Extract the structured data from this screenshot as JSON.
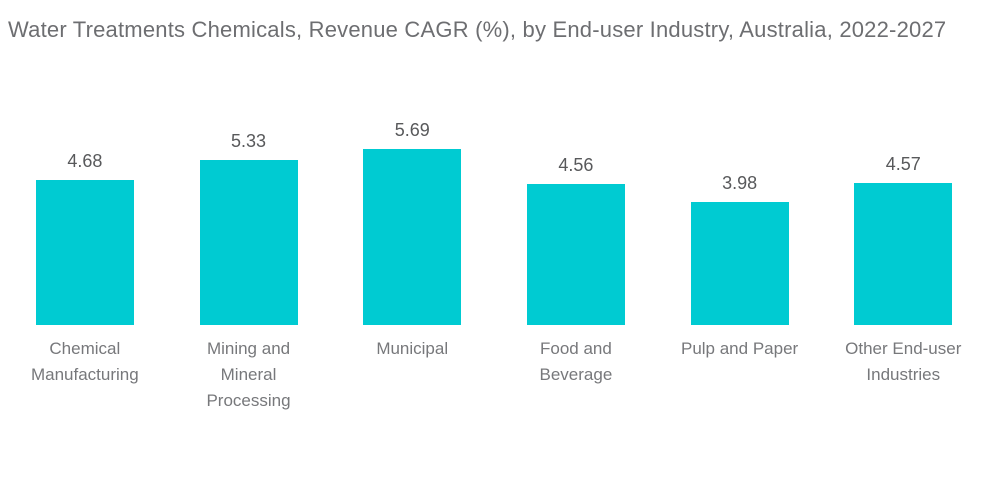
{
  "title": "Water Treatments Chemicals, Revenue CAGR (%), by End-user Industry, Australia, 2022-2027",
  "colors": {
    "background": "#FFFFFF",
    "bar": "#00CBD2",
    "title_text": "#6D6E71",
    "value_text": "#58595B",
    "category_text": "#77787B"
  },
  "chart_data": {
    "type": "bar",
    "title": "Water Treatments Chemicals, Revenue CAGR (%), by End-user Industry, Australia, 2022-2027",
    "categories": [
      "Chemical Manufacturing",
      "Mining and Mineral Processing",
      "Municipal",
      "Food and Beverage",
      "Pulp and Paper",
      "Other End-user Industries"
    ],
    "category_labels_wrapped": [
      "Chemical\nManufacturing",
      "Mining and\nMineral\nProcessing",
      "Municipal",
      "Food and\nBeverage",
      "Pulp and Paper",
      "Other End-user\nIndustries"
    ],
    "values": [
      4.68,
      5.33,
      5.69,
      4.56,
      3.98,
      4.57
    ],
    "value_labels": [
      "4.68",
      "5.33",
      "5.69",
      "4.56",
      "3.98",
      "4.57"
    ],
    "xlabel": "",
    "ylabel": "",
    "ylim": [
      0,
      10.5
    ],
    "axes_visible": false,
    "grid": false,
    "legend_position": "none",
    "bar_color": "#00CBD2"
  }
}
